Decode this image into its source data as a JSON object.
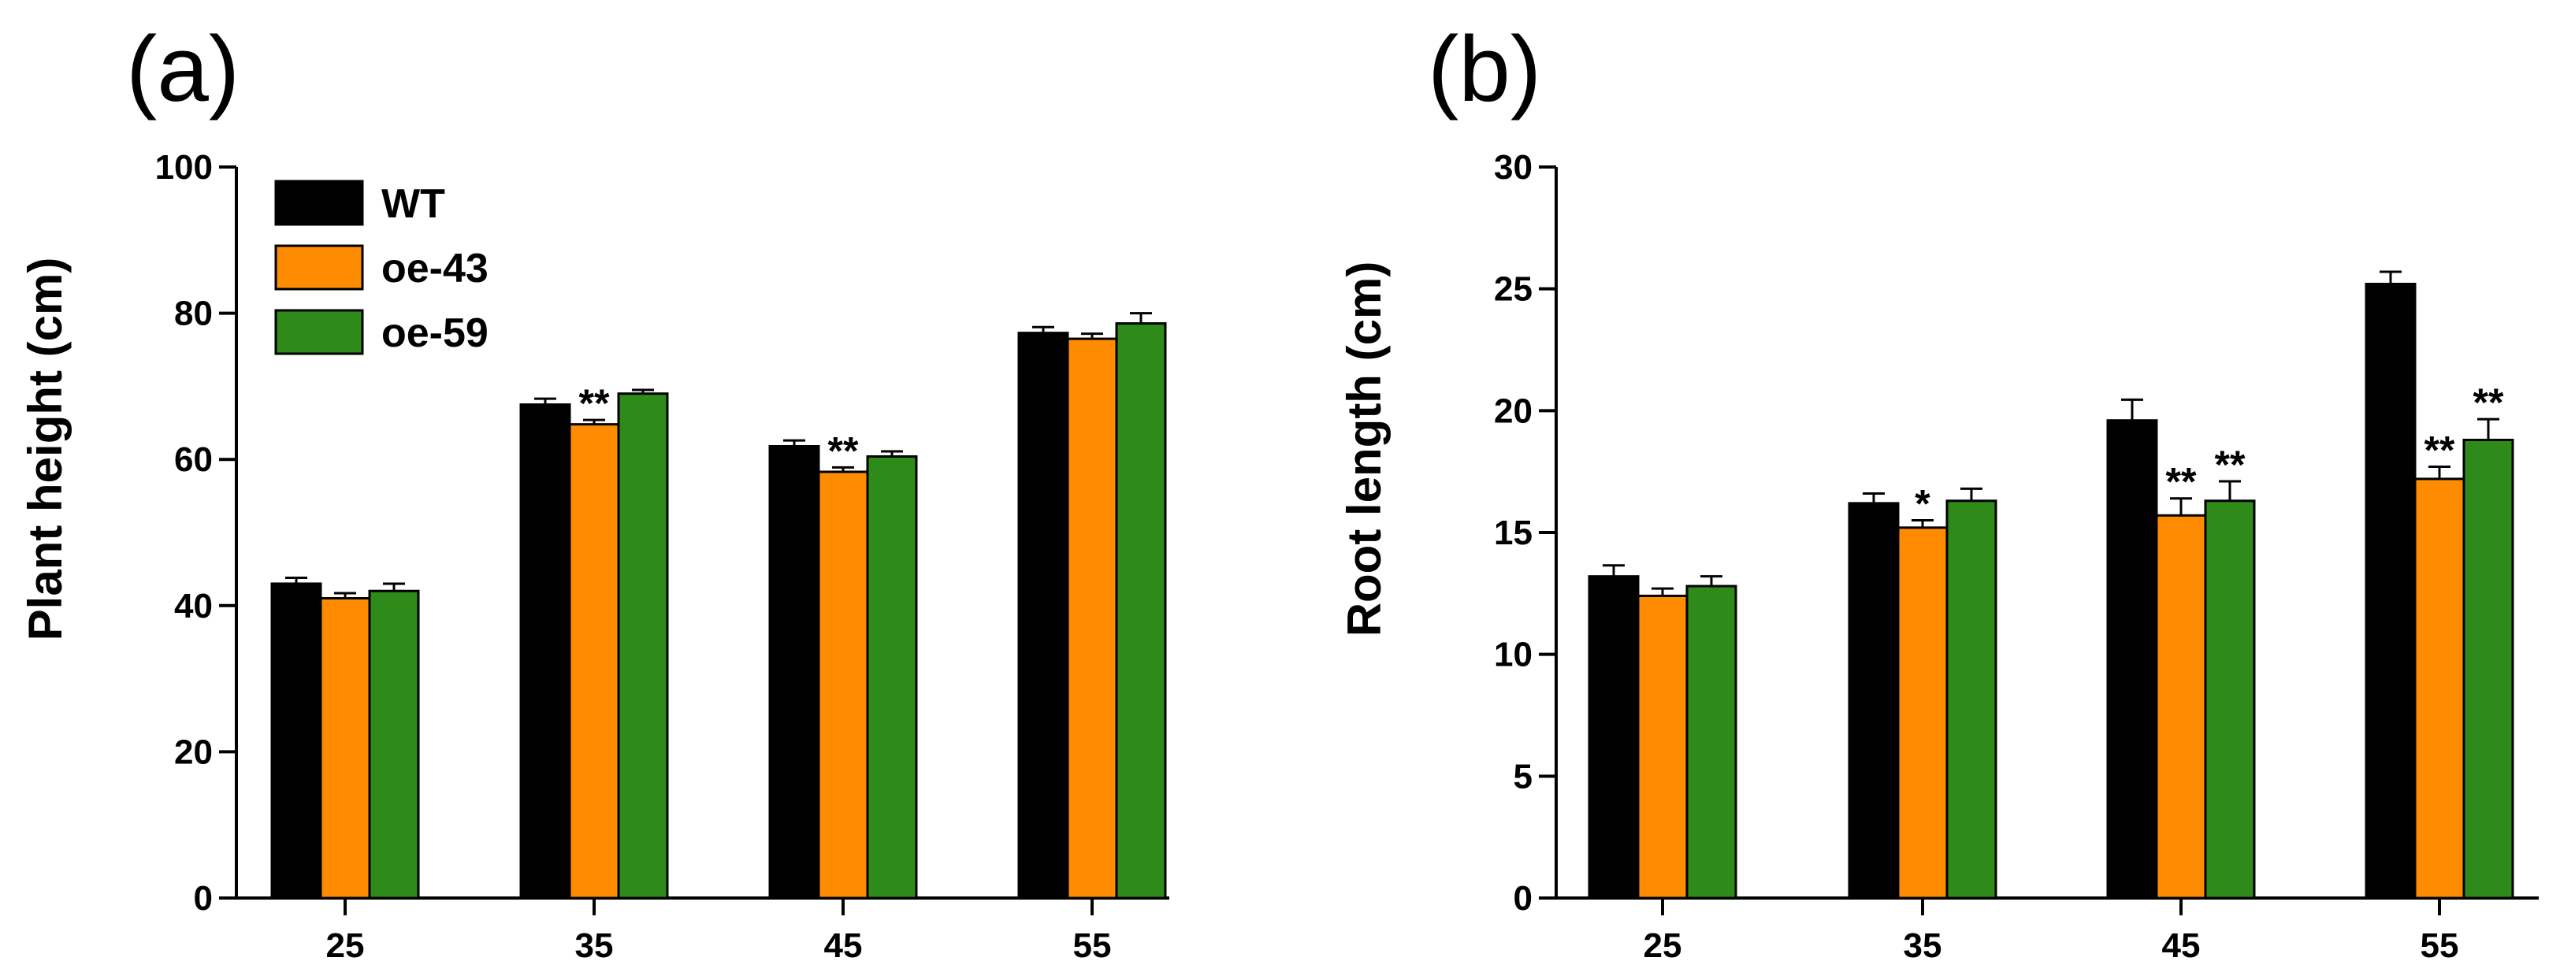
{
  "chart_data": [
    {
      "type": "bar",
      "panel": "(a)",
      "title": "",
      "xlabel": "",
      "ylabel": "Plant height (cm)",
      "ylim": [
        0,
        100
      ],
      "yticks": [
        0,
        20,
        40,
        60,
        80,
        100
      ],
      "grid": false,
      "legend": "top-left",
      "categories": [
        "25",
        "35",
        "45",
        "55"
      ],
      "series": [
        {
          "name": "WT",
          "color": "#000000",
          "values": [
            43.0,
            67.5,
            61.8,
            77.3
          ],
          "errors": [
            0.8,
            0.8,
            0.8,
            0.8
          ],
          "significance": [
            "",
            "",
            "",
            ""
          ]
        },
        {
          "name": "oe-43",
          "color": "#FF8C00",
          "values": [
            41.0,
            64.8,
            58.3,
            76.5
          ],
          "errors": [
            0.7,
            0.6,
            0.6,
            0.7
          ],
          "significance": [
            "",
            "**",
            "**",
            ""
          ]
        },
        {
          "name": "oe-59",
          "color": "#2E8B1A",
          "values": [
            42.0,
            69.0,
            60.4,
            78.6
          ],
          "errors": [
            1.0,
            0.5,
            0.7,
            1.4
          ],
          "significance": [
            "",
            "",
            "",
            ""
          ]
        }
      ]
    },
    {
      "type": "bar",
      "panel": "(b)",
      "title": "",
      "xlabel": "",
      "ylabel": "Root length (cm)",
      "ylim": [
        0,
        30
      ],
      "yticks": [
        0,
        5,
        10,
        15,
        20,
        25,
        30
      ],
      "grid": false,
      "legend": "none",
      "categories": [
        "25",
        "35",
        "45",
        "55"
      ],
      "series": [
        {
          "name": "WT",
          "color": "#000000",
          "values": [
            13.2,
            16.2,
            19.6,
            25.2
          ],
          "errors": [
            0.45,
            0.4,
            0.85,
            0.5
          ],
          "significance": [
            "",
            "",
            "",
            ""
          ]
        },
        {
          "name": "oe-43",
          "color": "#FF8C00",
          "values": [
            12.4,
            15.2,
            15.7,
            17.2
          ],
          "errors": [
            0.3,
            0.3,
            0.7,
            0.5
          ],
          "significance": [
            "",
            "*",
            "**",
            "**"
          ]
        },
        {
          "name": "oe-59",
          "color": "#2E8B1A",
          "values": [
            12.8,
            16.3,
            16.3,
            18.8
          ],
          "errors": [
            0.4,
            0.5,
            0.8,
            0.85
          ],
          "significance": [
            "",
            "",
            "**",
            "**"
          ]
        }
      ]
    }
  ]
}
